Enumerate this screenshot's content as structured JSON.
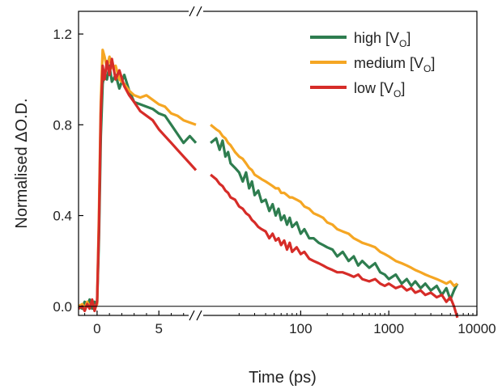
{
  "chart_data": {
    "type": "line",
    "xlabel": "Time (ps)",
    "ylabel": "Normalised ΔO.D.",
    "ylim": [
      -0.04,
      1.3
    ],
    "x_axis": {
      "break": true,
      "linear_segment": {
        "range": [
          -1.5,
          8
        ],
        "ticks": [
          0,
          5
        ],
        "tick_labels": [
          "0",
          "5"
        ]
      },
      "log_segment": {
        "range": [
          8,
          10000
        ],
        "scale": "log",
        "ticks": [
          100,
          1000,
          10000
        ],
        "tick_labels": [
          "100",
          "1000",
          "10000"
        ]
      }
    },
    "y_ticks": [
      0.0,
      0.4,
      0.8,
      1.2
    ],
    "y_tick_labels": [
      "0.0",
      "0.4",
      "0.8",
      "1.2"
    ],
    "zero_line": true,
    "grid": false,
    "legend": {
      "placement": "top-right"
    },
    "series": [
      {
        "name": "high [VO]",
        "legend_main": "high [V",
        "legend_sub": "O",
        "legend_close": "]",
        "color": "#2e7d4f",
        "points": [
          [
            -1.5,
            0.0
          ],
          [
            -1.2,
            -0.01
          ],
          [
            -1.0,
            0.02
          ],
          [
            -0.8,
            0.0
          ],
          [
            -0.6,
            0.03
          ],
          [
            -0.4,
            -0.01
          ],
          [
            -0.2,
            0.02
          ],
          [
            0.0,
            0.01
          ],
          [
            0.15,
            0.3
          ],
          [
            0.3,
            0.75
          ],
          [
            0.45,
            0.98
          ],
          [
            0.6,
            1.03
          ],
          [
            0.8,
            1.0
          ],
          [
            1.0,
            1.06
          ],
          [
            1.2,
            0.99
          ],
          [
            1.5,
            1.02
          ],
          [
            1.8,
            0.96
          ],
          [
            2.2,
            1.02
          ],
          [
            2.6,
            0.95
          ],
          [
            3.0,
            0.9
          ],
          [
            3.5,
            0.89
          ],
          [
            4.0,
            0.88
          ],
          [
            4.5,
            0.87
          ],
          [
            5.0,
            0.85
          ],
          [
            5.5,
            0.84
          ],
          [
            6.0,
            0.8
          ],
          [
            6.5,
            0.76
          ],
          [
            7.0,
            0.72
          ],
          [
            7.5,
            0.75
          ],
          [
            8.0,
            0.72
          ],
          [
            9.5,
            0.72
          ],
          [
            11,
            0.74
          ],
          [
            12,
            0.69
          ],
          [
            13,
            0.73
          ],
          [
            14,
            0.66
          ],
          [
            15,
            0.68
          ],
          [
            16,
            0.63
          ],
          [
            18,
            0.61
          ],
          [
            20,
            0.59
          ],
          [
            22,
            0.55
          ],
          [
            24,
            0.59
          ],
          [
            26,
            0.52
          ],
          [
            28,
            0.55
          ],
          [
            30,
            0.49
          ],
          [
            33,
            0.51
          ],
          [
            36,
            0.46
          ],
          [
            40,
            0.47
          ],
          [
            44,
            0.42
          ],
          [
            48,
            0.45
          ],
          [
            52,
            0.4
          ],
          [
            56,
            0.43
          ],
          [
            60,
            0.38
          ],
          [
            65,
            0.4
          ],
          [
            70,
            0.36
          ],
          [
            75,
            0.39
          ],
          [
            80,
            0.35
          ],
          [
            90,
            0.37
          ],
          [
            100,
            0.32
          ],
          [
            110,
            0.34
          ],
          [
            125,
            0.3
          ],
          [
            140,
            0.3
          ],
          [
            160,
            0.28
          ],
          [
            180,
            0.27
          ],
          [
            200,
            0.26
          ],
          [
            230,
            0.25
          ],
          [
            260,
            0.22
          ],
          [
            300,
            0.24
          ],
          [
            350,
            0.2
          ],
          [
            400,
            0.22
          ],
          [
            450,
            0.18
          ],
          [
            500,
            0.2
          ],
          [
            600,
            0.17
          ],
          [
            700,
            0.19
          ],
          [
            800,
            0.15
          ],
          [
            900,
            0.14
          ],
          [
            1000,
            0.12
          ],
          [
            1200,
            0.14
          ],
          [
            1400,
            0.1
          ],
          [
            1600,
            0.12
          ],
          [
            1800,
            0.09
          ],
          [
            2000,
            0.11
          ],
          [
            2300,
            0.08
          ],
          [
            2600,
            0.1
          ],
          [
            3000,
            0.07
          ],
          [
            3500,
            0.09
          ],
          [
            4000,
            0.05
          ],
          [
            4500,
            0.08
          ],
          [
            5000,
            0.03
          ],
          [
            5500,
            0.07
          ],
          [
            6000,
            0.1
          ]
        ]
      },
      {
        "name": "medium [VO]",
        "legend_main": "medium [V",
        "legend_sub": "O",
        "legend_close": "]",
        "color": "#f5a623",
        "points": [
          [
            -1.5,
            0.0
          ],
          [
            -1.2,
            0.01
          ],
          [
            -1.0,
            -0.01
          ],
          [
            -0.8,
            0.02
          ],
          [
            -0.6,
            0.0
          ],
          [
            -0.4,
            0.02
          ],
          [
            -0.2,
            -0.01
          ],
          [
            0.0,
            0.01
          ],
          [
            0.15,
            0.4
          ],
          [
            0.3,
            0.9
          ],
          [
            0.45,
            1.13
          ],
          [
            0.6,
            1.1
          ],
          [
            0.8,
            1.05
          ],
          [
            1.0,
            1.1
          ],
          [
            1.2,
            1.05
          ],
          [
            1.5,
            1.06
          ],
          [
            1.8,
            1.0
          ],
          [
            2.2,
            0.98
          ],
          [
            2.6,
            0.95
          ],
          [
            3.0,
            0.93
          ],
          [
            3.5,
            0.92
          ],
          [
            4.0,
            0.93
          ],
          [
            4.5,
            0.91
          ],
          [
            5.0,
            0.89
          ],
          [
            5.5,
            0.88
          ],
          [
            6.0,
            0.85
          ],
          [
            6.5,
            0.84
          ],
          [
            7.0,
            0.82
          ],
          [
            7.5,
            0.81
          ],
          [
            8.0,
            0.8
          ],
          [
            9.5,
            0.8
          ],
          [
            11,
            0.78
          ],
          [
            12,
            0.77
          ],
          [
            13,
            0.75
          ],
          [
            14,
            0.74
          ],
          [
            15,
            0.72
          ],
          [
            16,
            0.71
          ],
          [
            18,
            0.68
          ],
          [
            20,
            0.66
          ],
          [
            22,
            0.65
          ],
          [
            24,
            0.63
          ],
          [
            26,
            0.61
          ],
          [
            28,
            0.6
          ],
          [
            30,
            0.58
          ],
          [
            33,
            0.57
          ],
          [
            36,
            0.56
          ],
          [
            40,
            0.55
          ],
          [
            44,
            0.54
          ],
          [
            48,
            0.53
          ],
          [
            52,
            0.52
          ],
          [
            56,
            0.52
          ],
          [
            60,
            0.5
          ],
          [
            65,
            0.5
          ],
          [
            70,
            0.49
          ],
          [
            75,
            0.48
          ],
          [
            80,
            0.48
          ],
          [
            90,
            0.47
          ],
          [
            100,
            0.46
          ],
          [
            110,
            0.44
          ],
          [
            125,
            0.43
          ],
          [
            140,
            0.41
          ],
          [
            160,
            0.4
          ],
          [
            180,
            0.39
          ],
          [
            200,
            0.37
          ],
          [
            230,
            0.36
          ],
          [
            260,
            0.34
          ],
          [
            300,
            0.33
          ],
          [
            350,
            0.32
          ],
          [
            400,
            0.3
          ],
          [
            450,
            0.29
          ],
          [
            500,
            0.28
          ],
          [
            600,
            0.27
          ],
          [
            700,
            0.26
          ],
          [
            800,
            0.24
          ],
          [
            900,
            0.23
          ],
          [
            1000,
            0.22
          ],
          [
            1200,
            0.2
          ],
          [
            1400,
            0.19
          ],
          [
            1600,
            0.18
          ],
          [
            1800,
            0.17
          ],
          [
            2000,
            0.16
          ],
          [
            2300,
            0.15
          ],
          [
            2600,
            0.14
          ],
          [
            3000,
            0.13
          ],
          [
            3500,
            0.12
          ],
          [
            4000,
            0.11
          ],
          [
            4500,
            0.1
          ],
          [
            5000,
            0.11
          ],
          [
            5500,
            0.09
          ],
          [
            6000,
            0.1
          ]
        ]
      },
      {
        "name": "low [VO]",
        "legend_main": "low [V",
        "legend_sub": "O",
        "legend_close": "]",
        "color": "#d62c28",
        "points": [
          [
            -1.5,
            -0.01
          ],
          [
            -1.2,
            0.0
          ],
          [
            -1.0,
            -0.02
          ],
          [
            -0.8,
            0.01
          ],
          [
            -0.6,
            -0.01
          ],
          [
            -0.4,
            0.03
          ],
          [
            -0.2,
            -0.02
          ],
          [
            0.0,
            0.02
          ],
          [
            0.15,
            0.35
          ],
          [
            0.3,
            0.85
          ],
          [
            0.45,
            1.06
          ],
          [
            0.6,
            1.0
          ],
          [
            0.8,
            1.08
          ],
          [
            1.0,
            1.02
          ],
          [
            1.2,
            1.09
          ],
          [
            1.5,
            1.0
          ],
          [
            1.8,
            1.04
          ],
          [
            2.2,
            0.97
          ],
          [
            2.6,
            0.93
          ],
          [
            3.0,
            0.9
          ],
          [
            3.5,
            0.86
          ],
          [
            4.0,
            0.84
          ],
          [
            4.5,
            0.82
          ],
          [
            5.0,
            0.78
          ],
          [
            5.5,
            0.75
          ],
          [
            6.0,
            0.72
          ],
          [
            6.5,
            0.69
          ],
          [
            7.0,
            0.66
          ],
          [
            7.5,
            0.63
          ],
          [
            8.0,
            0.6
          ],
          [
            9.5,
            0.58
          ],
          [
            11,
            0.56
          ],
          [
            12,
            0.54
          ],
          [
            13,
            0.53
          ],
          [
            14,
            0.51
          ],
          [
            15,
            0.5
          ],
          [
            16,
            0.48
          ],
          [
            18,
            0.47
          ],
          [
            20,
            0.44
          ],
          [
            22,
            0.43
          ],
          [
            24,
            0.41
          ],
          [
            26,
            0.4
          ],
          [
            28,
            0.38
          ],
          [
            30,
            0.37
          ],
          [
            33,
            0.35
          ],
          [
            36,
            0.34
          ],
          [
            40,
            0.33
          ],
          [
            44,
            0.3
          ],
          [
            48,
            0.32
          ],
          [
            52,
            0.29
          ],
          [
            56,
            0.3
          ],
          [
            60,
            0.27
          ],
          [
            65,
            0.29
          ],
          [
            70,
            0.25
          ],
          [
            75,
            0.28
          ],
          [
            80,
            0.24
          ],
          [
            90,
            0.26
          ],
          [
            100,
            0.23
          ],
          [
            110,
            0.24
          ],
          [
            125,
            0.21
          ],
          [
            140,
            0.2
          ],
          [
            160,
            0.19
          ],
          [
            180,
            0.18
          ],
          [
            200,
            0.17
          ],
          [
            230,
            0.16
          ],
          [
            260,
            0.15
          ],
          [
            300,
            0.15
          ],
          [
            350,
            0.14
          ],
          [
            400,
            0.13
          ],
          [
            450,
            0.14
          ],
          [
            500,
            0.12
          ],
          [
            600,
            0.11
          ],
          [
            700,
            0.12
          ],
          [
            800,
            0.1
          ],
          [
            900,
            0.09
          ],
          [
            1000,
            0.1
          ],
          [
            1200,
            0.08
          ],
          [
            1400,
            0.09
          ],
          [
            1600,
            0.07
          ],
          [
            1800,
            0.08
          ],
          [
            2000,
            0.06
          ],
          [
            2300,
            0.07
          ],
          [
            2600,
            0.05
          ],
          [
            3000,
            0.06
          ],
          [
            3500,
            0.04
          ],
          [
            4000,
            0.05
          ],
          [
            4500,
            0.02
          ],
          [
            5000,
            0.04
          ],
          [
            5500,
            0.0
          ],
          [
            6000,
            -0.05
          ]
        ]
      }
    ]
  }
}
